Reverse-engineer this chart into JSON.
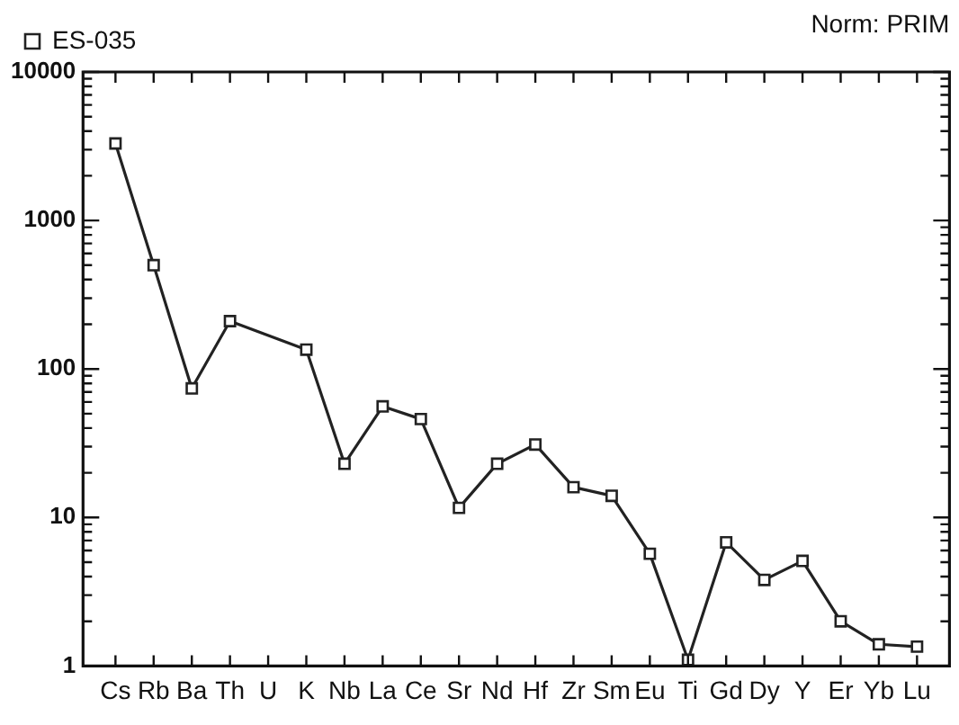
{
  "chart_data": {
    "type": "line",
    "log": "y",
    "marker": "square",
    "line_style": "solid",
    "grid": false,
    "legend": "top left",
    "categories": [
      "Cs",
      "Rb",
      "Ba",
      "Th",
      "U",
      "K",
      "Nb",
      "La",
      "Ce",
      "Sr",
      "Nd",
      "Hf",
      "Zr",
      "Sm",
      "Eu",
      "Ti",
      "Gd",
      "Dy",
      "Y",
      "Er",
      "Yb",
      "Lu"
    ],
    "series": [
      {
        "name": "ES-035",
        "color": "#222222",
        "values": [
          3300,
          500,
          74,
          210,
          null,
          135,
          23,
          56,
          46,
          11.6,
          23,
          31,
          16,
          14,
          5.7,
          1.1,
          6.8,
          3.8,
          5.1,
          2.0,
          1.4,
          1.35
        ]
      }
    ],
    "ylim": [
      1,
      10000
    ],
    "yticks": [
      1,
      {
        "value": 2,
        "label": null
      },
      {
        "value": 3,
        "label": null
      },
      {
        "value": 4,
        "label": null
      },
      {
        "value": 5,
        "label": null
      },
      {
        "value": 6,
        "label": null
      },
      {
        "value": 7,
        "label": null
      },
      {
        "value": 8,
        "label": null
      },
      {
        "value": 9,
        "label": null
      },
      10,
      {
        "value": 20,
        "label": null
      },
      {
        "value": 30,
        "label": null
      },
      {
        "value": 40,
        "label": null
      },
      {
        "value": 50,
        "label": null
      },
      {
        "value": 60,
        "label": null
      },
      {
        "value": 70,
        "label": null
      },
      {
        "value": 80,
        "label": null
      },
      {
        "value": 90,
        "label": null
      },
      100,
      {
        "value": 200,
        "label": null
      },
      {
        "value": 300,
        "label": null
      },
      {
        "value": 400,
        "label": null
      },
      {
        "value": 500,
        "label": null
      },
      {
        "value": 600,
        "label": null
      },
      {
        "value": 700,
        "label": null
      },
      {
        "value": 800,
        "label": null
      },
      {
        "value": 900,
        "label": null
      },
      1000,
      {
        "value": 2000,
        "label": null
      },
      {
        "value": 3000,
        "label": null
      },
      {
        "value": 4000,
        "label": null
      },
      {
        "value": 5000,
        "label": null
      },
      {
        "value": 6000,
        "label": null
      },
      {
        "value": 7000,
        "label": null
      },
      {
        "value": 8000,
        "label": null
      },
      {
        "value": 9000,
        "label": null
      },
      10000
    ],
    "annotations": [
      "Norm: PRIM"
    ]
  }
}
